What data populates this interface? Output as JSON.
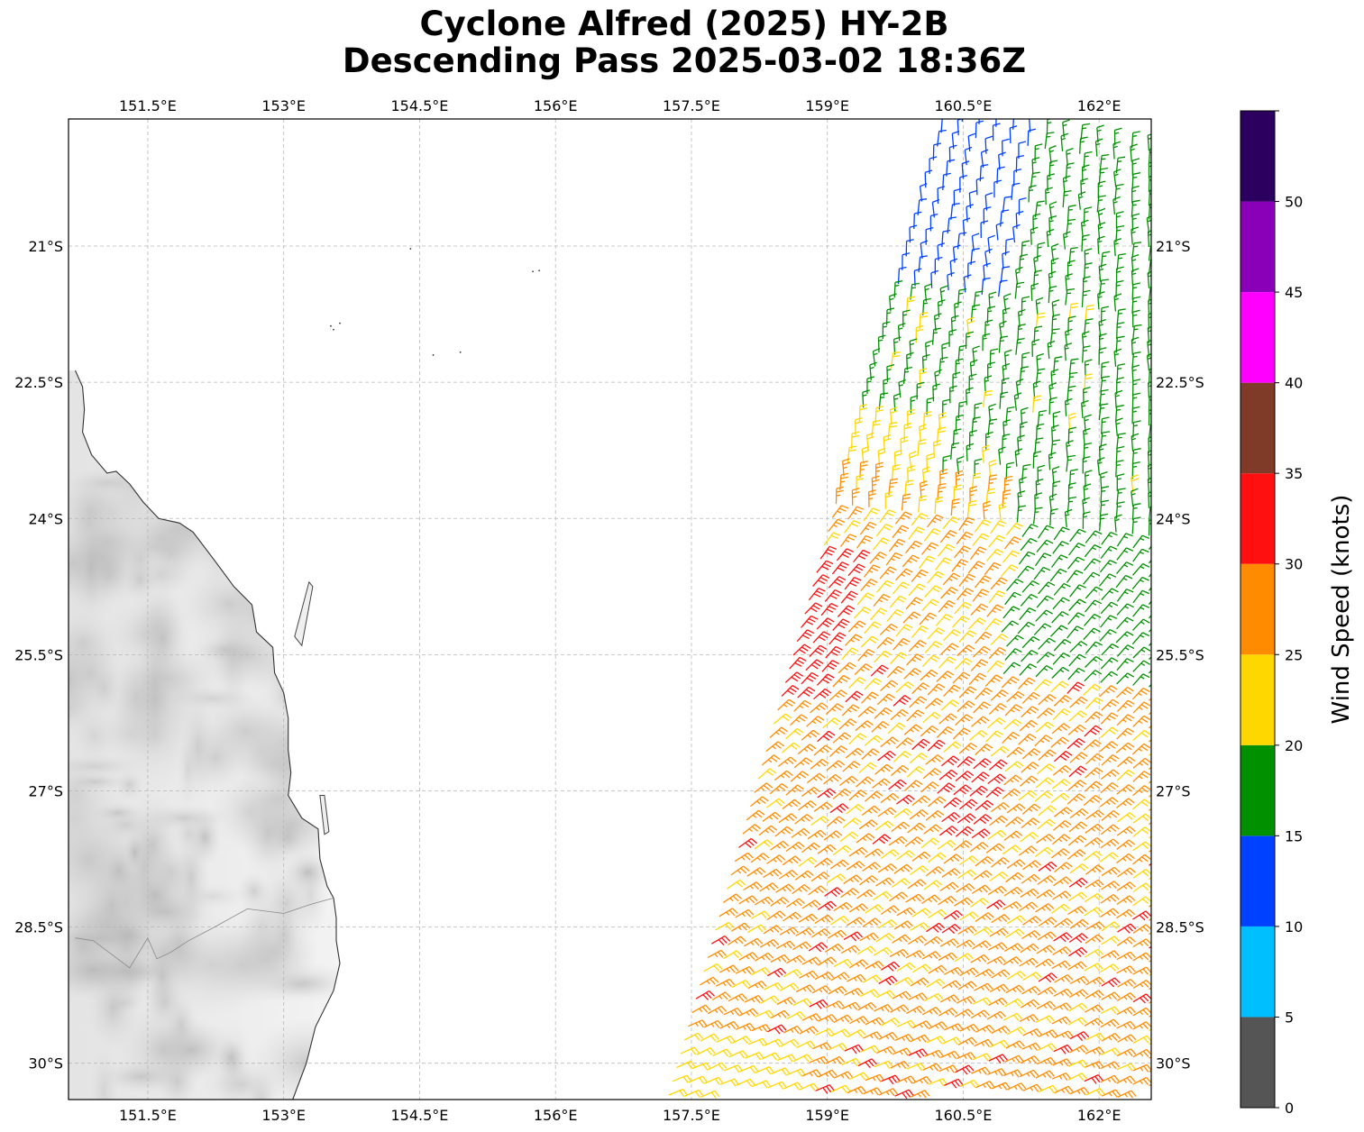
{
  "title": {
    "line1": "Cyclone Alfred (2025) HY-2B",
    "line2": "Descending Pass 2025-03-02 18:36Z"
  },
  "map": {
    "lon_range": [
      150.625,
      162.575
    ],
    "lat_range": [
      -30.4,
      -19.6
    ],
    "lon_ticks": [
      {
        "value": 151.5,
        "label": "151.5°E"
      },
      {
        "value": 153.0,
        "label": "153°E"
      },
      {
        "value": 154.5,
        "label": "154.5°E"
      },
      {
        "value": 156.0,
        "label": "156°E"
      },
      {
        "value": 157.5,
        "label": "157.5°E"
      },
      {
        "value": 159.0,
        "label": "159°E"
      },
      {
        "value": 160.5,
        "label": "160.5°E"
      },
      {
        "value": 162.0,
        "label": "162°E"
      }
    ],
    "lat_ticks": [
      {
        "value": -21.0,
        "label": "21°S"
      },
      {
        "value": -22.5,
        "label": "22.5°S"
      },
      {
        "value": -24.0,
        "label": "24°S"
      },
      {
        "value": -25.5,
        "label": "25.5°S"
      },
      {
        "value": -27.0,
        "label": "27°S"
      },
      {
        "value": -28.5,
        "label": "28.5°S"
      },
      {
        "value": -30.0,
        "label": "30°S"
      }
    ],
    "gridlines": true,
    "land_fill": "light gray terrain shading",
    "coastline": [
      [
        150.7,
        -22.37
      ],
      [
        150.78,
        -22.55
      ],
      [
        150.8,
        -22.8
      ],
      [
        150.78,
        -23.05
      ],
      [
        150.88,
        -23.3
      ],
      [
        151.05,
        -23.5
      ],
      [
        151.15,
        -23.48
      ],
      [
        151.3,
        -23.62
      ],
      [
        151.45,
        -23.82
      ],
      [
        151.62,
        -24.0
      ],
      [
        151.85,
        -24.05
      ],
      [
        152.0,
        -24.15
      ],
      [
        152.25,
        -24.48
      ],
      [
        152.45,
        -24.75
      ],
      [
        152.65,
        -24.95
      ],
      [
        152.7,
        -25.25
      ],
      [
        152.88,
        -25.42
      ],
      [
        152.9,
        -25.7
      ],
      [
        153.0,
        -25.92
      ],
      [
        153.05,
        -26.2
      ],
      [
        153.05,
        -26.55
      ],
      [
        153.08,
        -26.8
      ],
      [
        153.05,
        -27.05
      ],
      [
        153.2,
        -27.3
      ],
      [
        153.38,
        -27.42
      ],
      [
        153.4,
        -27.75
      ],
      [
        153.48,
        -28.05
      ],
      [
        153.55,
        -28.18
      ],
      [
        153.58,
        -28.4
      ],
      [
        153.58,
        -28.65
      ],
      [
        153.62,
        -28.9
      ],
      [
        153.55,
        -29.2
      ],
      [
        153.35,
        -29.6
      ],
      [
        153.25,
        -30.0
      ],
      [
        153.1,
        -30.4
      ]
    ],
    "islands": [
      [
        [
          153.12,
          -25.3
        ],
        [
          153.28,
          -24.7
        ],
        [
          153.32,
          -24.75
        ],
        [
          153.2,
          -25.4
        ],
        [
          153.12,
          -25.3
        ]
      ],
      [
        [
          153.4,
          -27.05
        ],
        [
          153.45,
          -27.05
        ],
        [
          153.5,
          -27.45
        ],
        [
          153.45,
          -27.48
        ],
        [
          153.4,
          -27.05
        ]
      ]
    ],
    "state_border": [
      [
        150.7,
        -28.62
      ],
      [
        150.9,
        -28.65
      ],
      [
        151.1,
        -28.8
      ],
      [
        151.3,
        -28.95
      ],
      [
        151.5,
        -28.62
      ],
      [
        151.6,
        -28.85
      ],
      [
        151.75,
        -28.78
      ],
      [
        151.95,
        -28.65
      ],
      [
        152.2,
        -28.52
      ],
      [
        152.6,
        -28.3
      ],
      [
        153.0,
        -28.35
      ],
      [
        153.3,
        -28.25
      ],
      [
        153.55,
        -28.18
      ]
    ]
  },
  "colorbar": {
    "label": "Wind Speed (knots)",
    "ticks": [
      "0",
      "5",
      "10",
      "15",
      "20",
      "25",
      "30",
      "35",
      "40",
      "45",
      "50"
    ],
    "bins": [
      {
        "min": 0,
        "max": 5,
        "color": "#555555"
      },
      {
        "min": 5,
        "max": 10,
        "color": "#00bfff"
      },
      {
        "min": 10,
        "max": 15,
        "color": "#0040ff"
      },
      {
        "min": 15,
        "max": 20,
        "color": "#009000"
      },
      {
        "min": 20,
        "max": 25,
        "color": "#ffd700"
      },
      {
        "min": 25,
        "max": 30,
        "color": "#ff8c00"
      },
      {
        "min": 30,
        "max": 35,
        "color": "#ff1010"
      },
      {
        "min": 35,
        "max": 40,
        "color": "#7f3a28"
      },
      {
        "min": 40,
        "max": 45,
        "color": "#ff00ff"
      },
      {
        "min": 45,
        "max": 50,
        "color": "#8a00b8"
      },
      {
        "min": 50,
        "max": 55,
        "color": "#2c005e"
      }
    ]
  },
  "swath": {
    "lat_start": -19.6,
    "lat_end": -30.35,
    "lon_left_top": 160.3,
    "lon_left_bottom": 157.25,
    "lon_right": 162.55
  }
}
